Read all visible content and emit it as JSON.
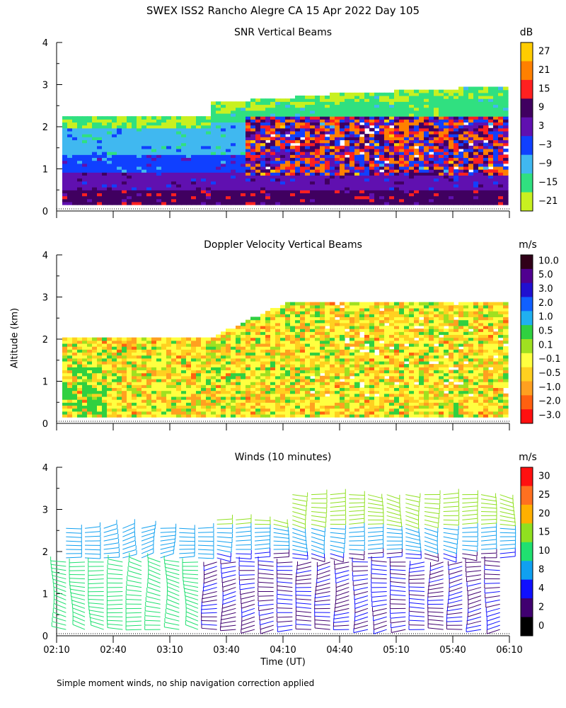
{
  "figure": {
    "title": "SWEX ISS2 Rancho Alegre CA  15 Apr 2022 Day 105",
    "ylabel": "Altitude (km)",
    "xlabel": "Time (UT)",
    "footnote": "Simple moment winds, no ship navigation correction applied"
  },
  "chart_data": [
    {
      "type": "heatmap",
      "title": "SNR Vertical Beams",
      "units": "dB",
      "ylim": [
        0,
        4
      ],
      "yticks": [
        "0",
        "1",
        "2",
        "3",
        "4"
      ],
      "x_start": "02:10",
      "x_end": "06:10",
      "colorbar": {
        "labels": [
          "27",
          "21",
          "15",
          "9",
          "3",
          "−3",
          "−9",
          "−15",
          "−21"
        ],
        "colors": [
          "#ffcc00",
          "#ff8000",
          "#ff2020",
          "#400060",
          "#6010b0",
          "#1040ff",
          "#40b8f0",
          "#30e080",
          "#c8f020"
        ]
      },
      "layers": [
        {
          "altitude_km": "0.3",
          "level": "9"
        },
        {
          "altitude_km": "0.7",
          "level": "3"
        },
        {
          "altitude_km": "1.2",
          "level": "-3 to -9"
        },
        {
          "altitude_km": "1.8",
          "level": "-9 to -15"
        },
        {
          "altitude_km": "2.8",
          "level": "-15 to -21"
        }
      ]
    },
    {
      "type": "heatmap",
      "title": "Doppler Velocity Vertical Beams",
      "units": "m/s",
      "ylim": [
        0,
        4
      ],
      "yticks": [
        "0",
        "1",
        "2",
        "3",
        "4"
      ],
      "x_start": "02:10",
      "x_end": "06:10",
      "colorbar": {
        "labels": [
          "10.0",
          "5.0",
          "3.0",
          "2.0",
          "1.0",
          "0.5",
          "0.1",
          "−0.1",
          "−0.5",
          "−1.0",
          "−2.0",
          "−3.0"
        ],
        "colors": [
          "#300018",
          "#500090",
          "#2010d0",
          "#1060ff",
          "#20b0f0",
          "#30d040",
          "#a0e020",
          "#ffff40",
          "#ffd020",
          "#ffa020",
          "#ff6010",
          "#ff1010"
        ]
      }
    },
    {
      "type": "scatter",
      "title": "Winds (10 minutes)",
      "units": "m/s",
      "ylim": [
        0,
        4
      ],
      "yticks": [
        "0",
        "1",
        "2",
        "3",
        "4"
      ],
      "x_start": "02:10",
      "x_end": "06:10",
      "xticks": [
        "02:10",
        "02:40",
        "03:10",
        "03:40",
        "04:10",
        "04:40",
        "05:10",
        "05:40",
        "06:10"
      ],
      "colorbar": {
        "labels": [
          "30",
          "25",
          "20",
          "15",
          "10",
          "8",
          "4",
          "2",
          "0"
        ],
        "colors": [
          "#ff1010",
          "#ff7020",
          "#ffb000",
          "#90e020",
          "#20e070",
          "#10a0f0",
          "#1010ff",
          "#400070",
          "#000000"
        ]
      }
    }
  ]
}
